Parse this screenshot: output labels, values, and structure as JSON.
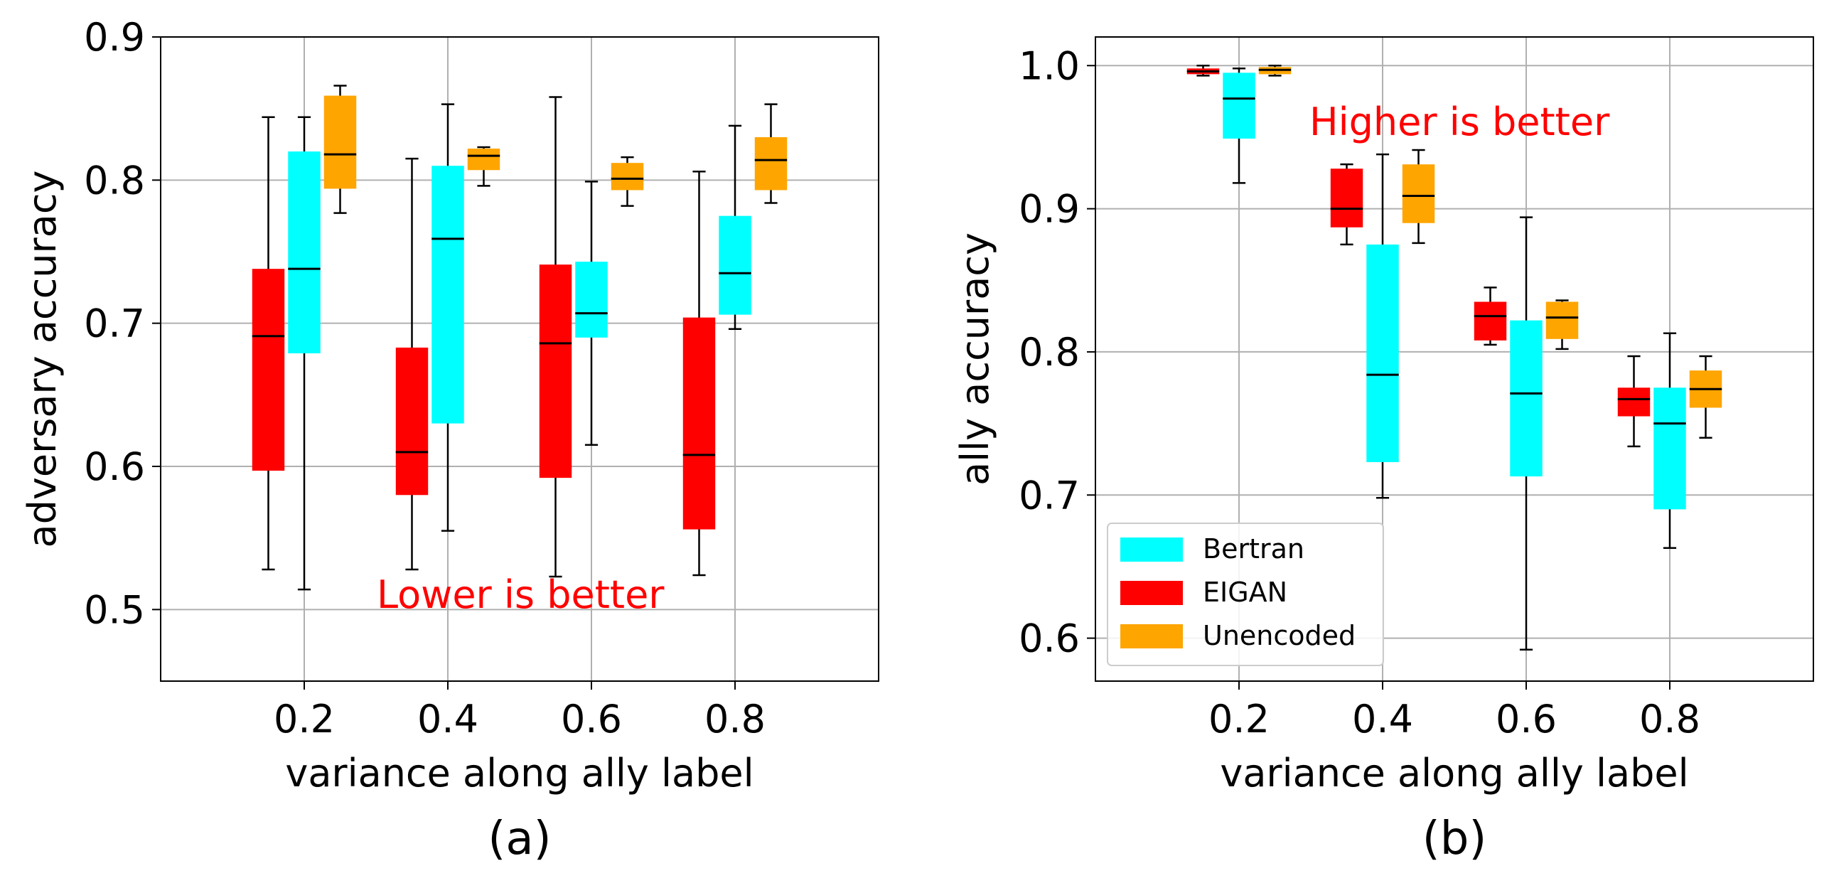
{
  "chart_data": [
    {
      "type": "box",
      "panel_label": "(a)",
      "xlabel": "variance along ally label",
      "ylabel": "adversary accuracy",
      "annotation": "Lower is better",
      "ylim": [
        0.45,
        0.9
      ],
      "yticks": [
        "0.5",
        "0.6",
        "0.7",
        "0.8",
        "0.9"
      ],
      "ytick_values": [
        0.5,
        0.6,
        0.7,
        0.8,
        0.9
      ],
      "xlim": [
        0,
        1.0
      ],
      "xticks": [
        "0.2",
        "0.4",
        "0.6",
        "0.8"
      ],
      "xtick_values": [
        0.2,
        0.4,
        0.6,
        0.8
      ],
      "grid": true,
      "series": [
        {
          "name": "EIGAN",
          "color": "#ff0000",
          "offset": -0.05,
          "boxes": [
            {
              "x": 0.2,
              "whislo": 0.528,
              "q1": 0.597,
              "med": 0.691,
              "q3": 0.738,
              "whishi": 0.844
            },
            {
              "x": 0.4,
              "whislo": 0.528,
              "q1": 0.58,
              "med": 0.61,
              "q3": 0.683,
              "whishi": 0.815
            },
            {
              "x": 0.6,
              "whislo": 0.523,
              "q1": 0.592,
              "med": 0.686,
              "q3": 0.741,
              "whishi": 0.858
            },
            {
              "x": 0.8,
              "whislo": 0.524,
              "q1": 0.556,
              "med": 0.608,
              "q3": 0.704,
              "whishi": 0.806
            }
          ]
        },
        {
          "name": "Bertran",
          "color": "#00ffff",
          "offset": 0.0,
          "boxes": [
            {
              "x": 0.2,
              "whislo": 0.514,
              "q1": 0.679,
              "med": 0.738,
              "q3": 0.82,
              "whishi": 0.844
            },
            {
              "x": 0.4,
              "whislo": 0.555,
              "q1": 0.63,
              "med": 0.759,
              "q3": 0.81,
              "whishi": 0.853
            },
            {
              "x": 0.6,
              "whislo": 0.615,
              "q1": 0.69,
              "med": 0.707,
              "q3": 0.743,
              "whishi": 0.799
            },
            {
              "x": 0.8,
              "whislo": 0.696,
              "q1": 0.706,
              "med": 0.735,
              "q3": 0.775,
              "whishi": 0.838
            }
          ]
        },
        {
          "name": "Unencoded",
          "color": "#ffa500",
          "offset": 0.05,
          "boxes": [
            {
              "x": 0.2,
              "whislo": 0.777,
              "q1": 0.794,
              "med": 0.818,
              "q3": 0.859,
              "whishi": 0.866
            },
            {
              "x": 0.4,
              "whislo": 0.796,
              "q1": 0.807,
              "med": 0.817,
              "q3": 0.822,
              "whishi": 0.823
            },
            {
              "x": 0.6,
              "whislo": 0.782,
              "q1": 0.793,
              "med": 0.801,
              "q3": 0.812,
              "whishi": 0.816
            },
            {
              "x": 0.8,
              "whislo": 0.784,
              "q1": 0.793,
              "med": 0.814,
              "q3": 0.83,
              "whishi": 0.853
            }
          ]
        }
      ]
    },
    {
      "type": "box",
      "panel_label": "(b)",
      "xlabel": "variance along ally label",
      "ylabel": "ally accuracy",
      "annotation": "Higher is better",
      "ylim": [
        0.57,
        1.02
      ],
      "yticks": [
        "0.6",
        "0.7",
        "0.8",
        "0.9",
        "1.0"
      ],
      "ytick_values": [
        0.6,
        0.7,
        0.8,
        0.9,
        1.0
      ],
      "xlim": [
        0,
        1.0
      ],
      "xticks": [
        "0.2",
        "0.4",
        "0.6",
        "0.8"
      ],
      "xtick_values": [
        0.2,
        0.4,
        0.6,
        0.8
      ],
      "grid": true,
      "legend": {
        "position": "lower-left",
        "entries": [
          "Bertran",
          "EIGAN",
          "Unencoded"
        ]
      },
      "series": [
        {
          "name": "EIGAN",
          "color": "#ff0000",
          "offset": -0.05,
          "boxes": [
            {
              "x": 0.2,
              "whislo": 0.993,
              "q1": 0.994,
              "med": 0.996,
              "q3": 0.998,
              "whishi": 1.0
            },
            {
              "x": 0.4,
              "whislo": 0.875,
              "q1": 0.887,
              "med": 0.9,
              "q3": 0.928,
              "whishi": 0.931
            },
            {
              "x": 0.6,
              "whislo": 0.805,
              "q1": 0.808,
              "med": 0.825,
              "q3": 0.835,
              "whishi": 0.845
            },
            {
              "x": 0.8,
              "whislo": 0.734,
              "q1": 0.755,
              "med": 0.767,
              "q3": 0.775,
              "whishi": 0.797
            }
          ]
        },
        {
          "name": "Bertran",
          "color": "#00ffff",
          "offset": 0.0,
          "boxes": [
            {
              "x": 0.2,
              "whislo": 0.918,
              "q1": 0.949,
              "med": 0.977,
              "q3": 0.995,
              "whishi": 0.998
            },
            {
              "x": 0.4,
              "whislo": 0.698,
              "q1": 0.723,
              "med": 0.784,
              "q3": 0.875,
              "whishi": 0.938
            },
            {
              "x": 0.6,
              "whislo": 0.592,
              "q1": 0.713,
              "med": 0.771,
              "q3": 0.822,
              "whishi": 0.894
            },
            {
              "x": 0.8,
              "whislo": 0.663,
              "q1": 0.69,
              "med": 0.75,
              "q3": 0.775,
              "whishi": 0.813
            }
          ]
        },
        {
          "name": "Unencoded",
          "color": "#ffa500",
          "offset": 0.05,
          "boxes": [
            {
              "x": 0.2,
              "whislo": 0.993,
              "q1": 0.994,
              "med": 0.997,
              "q3": 0.999,
              "whishi": 1.0
            },
            {
              "x": 0.4,
              "whislo": 0.876,
              "q1": 0.89,
              "med": 0.909,
              "q3": 0.931,
              "whishi": 0.941
            },
            {
              "x": 0.6,
              "whislo": 0.802,
              "q1": 0.809,
              "med": 0.824,
              "q3": 0.835,
              "whishi": 0.836
            },
            {
              "x": 0.8,
              "whislo": 0.74,
              "q1": 0.761,
              "med": 0.774,
              "q3": 0.787,
              "whishi": 0.797
            }
          ]
        }
      ]
    }
  ]
}
